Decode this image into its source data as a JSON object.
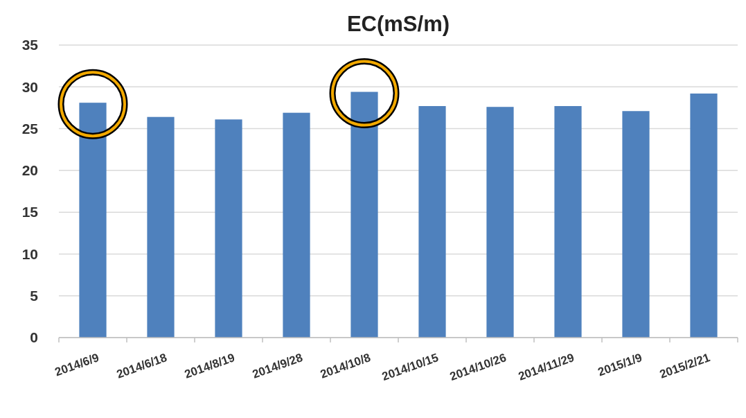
{
  "chart_data": {
    "type": "bar",
    "title": "EC(mS/m)",
    "categories": [
      "2014/6/9",
      "2014/6/18",
      "2014/8/19",
      "2014/9/28",
      "2014/10/8",
      "2014/10/15",
      "2014/10/26",
      "2014/11/29",
      "2015/1/9",
      "2015/2/21"
    ],
    "values": [
      28.1,
      26.4,
      26.1,
      26.9,
      29.4,
      27.7,
      27.6,
      27.7,
      27.1,
      29.2
    ],
    "color": "#4f81bd",
    "ylim": [
      0,
      35
    ],
    "yticks": [
      0,
      5,
      10,
      15,
      20,
      25,
      30,
      35
    ],
    "grid": "y"
  }
}
